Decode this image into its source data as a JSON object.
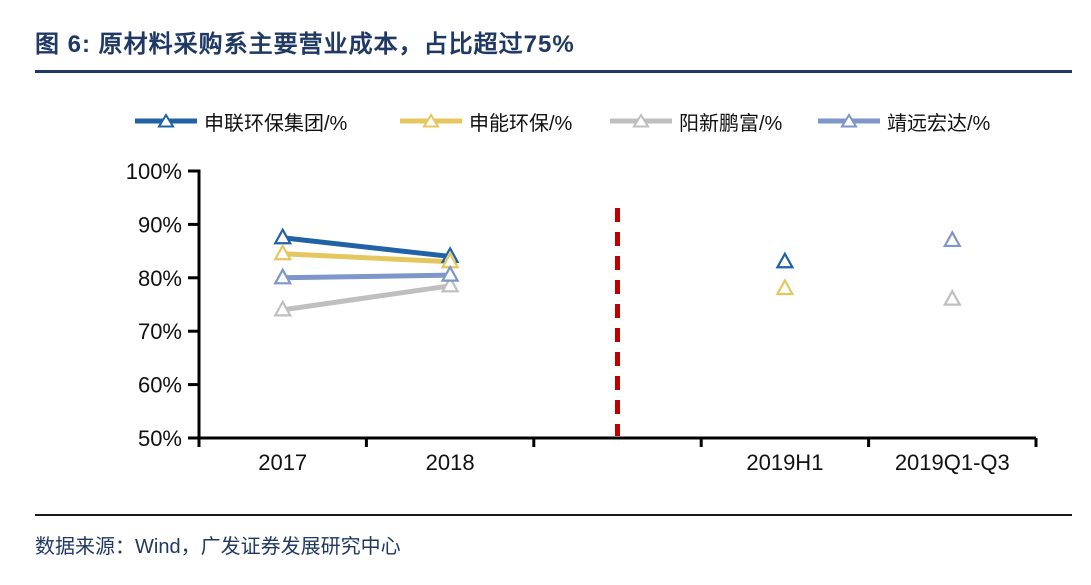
{
  "header": {
    "figure_title": "图 6: 原材料采购系主要营业成本，占比超过75%"
  },
  "footer": {
    "source": "数据来源：Wind，广发证券发展研究中心"
  },
  "colors": {
    "title_navy": "#1F3864",
    "axis_black": "#000000",
    "vline_red": "#C00000",
    "marker_fill": "#FFFFFF"
  },
  "chart_data": {
    "type": "line",
    "title": "图 6: 原材料采购系主要营业成本，占比超过75%",
    "categories": [
      "2017",
      "2018",
      "",
      "2019H1",
      "2019Q1-Q3"
    ],
    "series": [
      {
        "name": "申联环保集团/%",
        "color": "#1F62A5",
        "marker": "triangle-open",
        "values": [
          87.5,
          84,
          null,
          83,
          null
        ]
      },
      {
        "name": "申能环保/%",
        "color": "#E6C65F",
        "marker": "triangle-open",
        "values": [
          84.5,
          83,
          null,
          78,
          null
        ]
      },
      {
        "name": "阳新鹏富/%",
        "color": "#BFBFBF",
        "marker": "triangle-open",
        "values": [
          74,
          78.5,
          null,
          null,
          76
        ]
      },
      {
        "name": "靖远宏达/%",
        "color": "#7E96C9",
        "marker": "triangle-open",
        "values": [
          80,
          80.5,
          null,
          null,
          87
        ]
      }
    ],
    "ylim": [
      50,
      100
    ],
    "ytick_step": 10,
    "ytick_labels": [
      "100%",
      "90%",
      "80%",
      "70%",
      "60%",
      "50%"
    ],
    "xtick_labels": [
      "2017",
      "2018",
      "2019H1",
      "2019Q1-Q3"
    ],
    "grid": false,
    "legend_position": "top",
    "annotation": {
      "type": "vline-dashed",
      "category_index": 2,
      "color": "#C00000",
      "label": ""
    }
  }
}
